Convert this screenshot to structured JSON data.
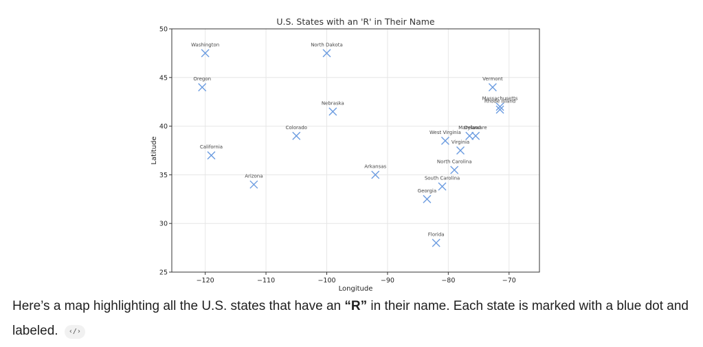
{
  "chart_data": {
    "type": "scatter",
    "title": "U.S. States with an 'R' in Their Name",
    "xlabel": "Longitude",
    "ylabel": "Latitude",
    "xlim": [
      -125.5,
      -65
    ],
    "ylim": [
      25,
      50
    ],
    "xticks": [
      -120,
      -110,
      -100,
      -90,
      -80,
      -70
    ],
    "xtick_labels": [
      "−120",
      "−110",
      "−100",
      "−90",
      "−80",
      "−70"
    ],
    "yticks": [
      25,
      30,
      35,
      40,
      45,
      50
    ],
    "ytick_labels": [
      "25",
      "30",
      "35",
      "40",
      "45",
      "50"
    ],
    "grid": true,
    "marker": "x",
    "marker_color": "#6a9be0",
    "points": [
      {
        "label": "Washington",
        "x": -120.0,
        "y": 47.5
      },
      {
        "label": "Oregon",
        "x": -120.5,
        "y": 44.0
      },
      {
        "label": "California",
        "x": -119.0,
        "y": 37.0
      },
      {
        "label": "Arizona",
        "x": -112.0,
        "y": 34.0
      },
      {
        "label": "Colorado",
        "x": -105.0,
        "y": 39.0
      },
      {
        "label": "North Dakota",
        "x": -100.0,
        "y": 47.5
      },
      {
        "label": "Nebraska",
        "x": -99.0,
        "y": 41.5
      },
      {
        "label": "Arkansas",
        "x": -92.0,
        "y": 35.0
      },
      {
        "label": "Florida",
        "x": -82.0,
        "y": 28.0
      },
      {
        "label": "Georgia",
        "x": -83.5,
        "y": 32.5
      },
      {
        "label": "South Carolina",
        "x": -81.0,
        "y": 33.8
      },
      {
        "label": "North Carolina",
        "x": -79.0,
        "y": 35.5
      },
      {
        "label": "Virginia",
        "x": -78.0,
        "y": 37.5
      },
      {
        "label": "West Virginia",
        "x": -80.5,
        "y": 38.5
      },
      {
        "label": "Maryland",
        "x": -76.5,
        "y": 39.0
      },
      {
        "label": "Delaware",
        "x": -75.5,
        "y": 39.0
      },
      {
        "label": "Vermont",
        "x": -72.7,
        "y": 44.0
      },
      {
        "label": "Massachusetts",
        "x": -71.5,
        "y": 42.0
      },
      {
        "label": "Rhode Island",
        "x": -71.5,
        "y": 41.7
      }
    ]
  },
  "message": {
    "text_before": "Here’s a map highlighting all the U.S. states that have an ",
    "text_bold": "“R”",
    "text_after": " in their name. Each state is marked with a blue dot and labeled.",
    "code_chip_label": "‹/›"
  }
}
